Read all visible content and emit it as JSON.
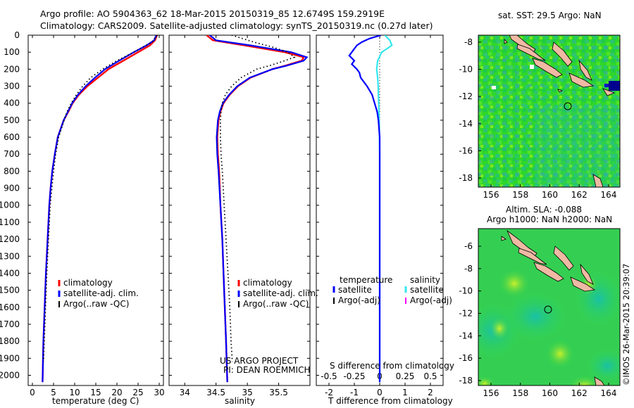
{
  "header": {
    "line1": "Argo profile: AO 5904363_62 18-Mar-2015 20150319_85 12.6749S 159.2919E",
    "line2": "Climatology: CARS2009. Satellite-adjusted climatology: synTS_20150319.nc (0.27d later)"
  },
  "colors": {
    "climatology": "#ff0000",
    "satellite": "#0000ff",
    "argo": "#000000",
    "sal_satellite": "#33e8f0",
    "sal_argo": "#ff00ff"
  },
  "chart_data": [
    {
      "type": "line",
      "name": "temperature",
      "xlabel": "temperature (deg C)",
      "ylabel": "",
      "xlim": [
        -1,
        31
      ],
      "ylim": [
        2060,
        0
      ],
      "xticks": [
        0,
        5,
        10,
        15,
        20,
        25,
        30
      ],
      "yticks": [
        0,
        100,
        200,
        300,
        400,
        500,
        600,
        700,
        800,
        900,
        1000,
        1100,
        1200,
        1300,
        1400,
        1500,
        1600,
        1700,
        1800,
        1900,
        2000
      ],
      "legend": [
        "climatology",
        "satellite-adj. clim.",
        "Argo(..raw -QC)"
      ],
      "series": [
        {
          "name": "climatology",
          "depth": [
            0,
            30,
            60,
            100,
            150,
            200,
            250,
            300,
            350,
            400,
            450,
            500,
            600,
            700,
            800,
            900,
            1000,
            1200,
            1400,
            1600,
            1800,
            2040
          ],
          "values": [
            29.5,
            29.0,
            27.8,
            25.0,
            21.5,
            18.0,
            15.5,
            13.0,
            11.0,
            9.5,
            8.5,
            7.4,
            6.0,
            5.3,
            4.7,
            4.3,
            4.0,
            3.6,
            3.2,
            2.9,
            2.6,
            2.4
          ]
        },
        {
          "name": "satellite-adj. clim.",
          "depth": [
            0,
            30,
            60,
            100,
            150,
            200,
            250,
            300,
            350,
            400,
            450,
            500,
            600,
            700,
            800,
            900,
            1000,
            1200,
            1400,
            1600,
            1800,
            2040
          ],
          "values": [
            29.3,
            28.8,
            27.0,
            24.0,
            20.5,
            17.2,
            14.8,
            12.6,
            10.8,
            9.4,
            8.4,
            7.4,
            6.0,
            5.3,
            4.7,
            4.3,
            4.0,
            3.6,
            3.2,
            2.9,
            2.6,
            2.4
          ]
        },
        {
          "name": "Argo(..raw -QC)",
          "depth": [
            0,
            40,
            100,
            150,
            200,
            250,
            300,
            350,
            400,
            450,
            500,
            600,
            700,
            800,
            900,
            1000,
            1200,
            1400,
            1600,
            1800,
            1920
          ],
          "values": [
            29.5,
            28.3,
            24.0,
            20.0,
            16.6,
            13.8,
            11.9,
            10.4,
            9.2,
            8.2,
            7.5,
            6.2,
            5.5,
            5.0,
            4.6,
            4.2,
            3.8,
            3.4,
            3.1,
            2.8,
            2.6
          ]
        }
      ]
    },
    {
      "type": "line",
      "name": "salinity",
      "xlabel": "salinity",
      "xlim": [
        33.75,
        36.0
      ],
      "ylim": [
        2060,
        0
      ],
      "xticks": [
        34,
        34.5,
        35,
        35.5
      ],
      "yticks_shown": false,
      "legend": [
        "climatology",
        "satellite-adj. clim.",
        "Argo(..raw -QC)"
      ],
      "series": [
        {
          "name": "climatology",
          "depth": [
            0,
            30,
            60,
            100,
            130,
            150,
            180,
            200,
            250,
            300,
            350,
            400,
            450,
            500,
            600,
            700,
            800,
            1000,
            1200,
            1400,
            1600,
            1800,
            2040
          ],
          "values": [
            34.35,
            34.45,
            34.95,
            35.6,
            35.9,
            35.87,
            35.6,
            35.4,
            35.05,
            34.85,
            34.72,
            34.62,
            34.57,
            34.54,
            34.52,
            34.53,
            34.55,
            34.57,
            34.6,
            34.62,
            34.64,
            34.66,
            34.68
          ]
        },
        {
          "name": "satellite-adj. clim.",
          "depth": [
            0,
            30,
            60,
            100,
            130,
            150,
            180,
            200,
            250,
            300,
            350,
            400,
            450,
            500,
            600,
            700,
            800,
            1000,
            1200,
            1400,
            1600,
            1800,
            2040
          ],
          "values": [
            34.4,
            34.5,
            35.05,
            35.7,
            35.95,
            35.9,
            35.62,
            35.4,
            35.04,
            34.84,
            34.71,
            34.61,
            34.56,
            34.53,
            34.51,
            34.52,
            34.54,
            34.57,
            34.6,
            34.62,
            34.64,
            34.66,
            34.68
          ]
        },
        {
          "name": "Argo(..raw -QC)",
          "depth": [
            0,
            40,
            70,
            100,
            130,
            150,
            180,
            200,
            250,
            300,
            350,
            400,
            450,
            500,
            600,
            700,
            800,
            1000,
            1200,
            1400,
            1600,
            1800,
            1920
          ],
          "values": [
            34.75,
            35.1,
            35.4,
            35.65,
            35.75,
            35.6,
            35.35,
            35.15,
            34.9,
            34.75,
            34.65,
            34.6,
            34.58,
            34.57,
            34.57,
            34.58,
            34.6,
            34.63,
            34.66,
            34.69,
            34.72,
            34.74,
            34.76
          ]
        }
      ],
      "annotation": [
        "US ARGO PROJECT",
        "PI: DEAN ROEMMICH"
      ]
    },
    {
      "type": "line",
      "name": "differences",
      "xlabel": "T difference from climatology",
      "xlabel_top": "S difference from climatology",
      "xlim": [
        -2.5,
        2.5
      ],
      "ylim": [
        2060,
        0
      ],
      "xticks": [
        -2,
        -1,
        0,
        1,
        2
      ],
      "xticks_salinity": [
        -0.5,
        -0.25,
        0,
        0.25,
        0.5
      ],
      "legend": [
        "temperature",
        "satellite",
        "Argo(-adj)",
        "salinity",
        "satellite",
        "Argo(-adj)"
      ],
      "series": [
        {
          "name": "temperature satellite",
          "depth": [
            0,
            20,
            40,
            60,
            80,
            100,
            120,
            150,
            170,
            200,
            220,
            250,
            300,
            350,
            400,
            450,
            500,
            600,
            700,
            800,
            1000,
            1200,
            1500,
            2040
          ],
          "values": [
            0.05,
            -0.4,
            -0.7,
            -0.9,
            -1.0,
            -1.1,
            -1.2,
            -1.0,
            -1.1,
            -0.9,
            -0.8,
            -0.75,
            -0.5,
            -0.3,
            -0.2,
            -0.1,
            -0.05,
            0.0,
            0.0,
            0.0,
            0.0,
            0.0,
            0.0,
            0.0
          ]
        },
        {
          "name": "salinity satellite",
          "depth": [
            0,
            30,
            60,
            100,
            150,
            200,
            250,
            300,
            400,
            500,
            700,
            1000,
            1500,
            2040
          ],
          "values": [
            0.05,
            0.1,
            0.12,
            0.02,
            -0.02,
            -0.03,
            -0.02,
            -0.015,
            -0.01,
            -0.005,
            0.0,
            0.0,
            0.0,
            0.0
          ]
        },
        {
          "name": "zero reference",
          "depth": [
            0,
            2040
          ],
          "values": [
            0,
            0
          ]
        }
      ]
    }
  ],
  "maps": {
    "sst": {
      "title": "sat. SST: 29.5 Argo: NaN",
      "xticks": [
        "156",
        "158",
        "160",
        "162",
        "164"
      ],
      "yticks": [
        "-8",
        "-10",
        "-12",
        "-14",
        "-16",
        "-18"
      ]
    },
    "sla": {
      "title1": "Altim. SLA: -0.088",
      "title2": "Argo h1000: NaN h2000: NaN",
      "xticks": [
        "156",
        "158",
        "160",
        "162",
        "164"
      ],
      "yticks": [
        "-6",
        "-8",
        "-10",
        "-12",
        "-14",
        "-16",
        "-18"
      ]
    },
    "stamp": "©IMOS 26-Mar-2015 20:39:07"
  }
}
